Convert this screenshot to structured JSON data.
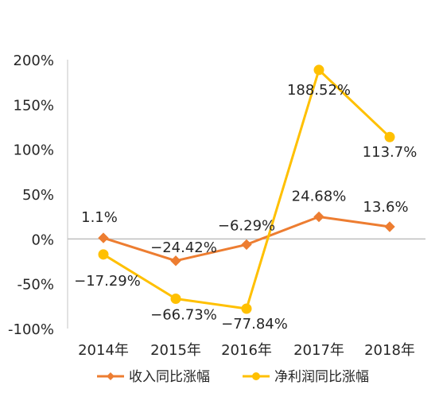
{
  "chart_data": {
    "type": "line",
    "categories": [
      "2014年",
      "2015年",
      "2016年",
      "2017年",
      "2018年"
    ],
    "y_ticks": [
      "200%",
      "150%",
      "100%",
      "50%",
      "0%",
      "-50%",
      "-100%"
    ],
    "ylim": [
      -100,
      200
    ],
    "grid": false,
    "legend_position": "bottom",
    "series": [
      {
        "name": "收入同比涨幅",
        "color": "#ED7D31",
        "marker": "diamond",
        "values": [
          1.1,
          -24.42,
          -6.29,
          24.68,
          13.6
        ],
        "labels": [
          "1.1%",
          "−24.42%",
          "−6.29%",
          "24.68%",
          "13.6%"
        ]
      },
      {
        "name": "净利润同比涨幅",
        "color": "#FFC000",
        "marker": "circle",
        "values": [
          -17.29,
          -66.73,
          -77.84,
          188.52,
          113.7
        ],
        "labels": [
          "−17.29%",
          "−66.73%",
          "−77.84%",
          "188.52%",
          "113.7%"
        ]
      }
    ]
  }
}
